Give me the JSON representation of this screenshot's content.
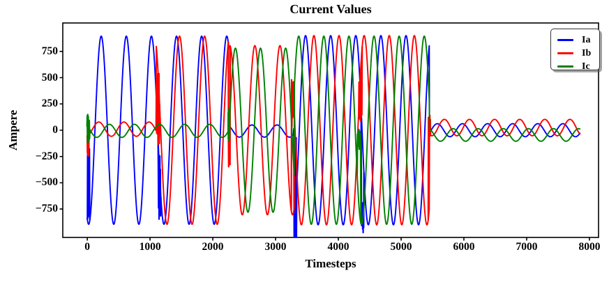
{
  "figure": {
    "title": "Current Values",
    "background_color": "#ffffff"
  },
  "chart_data": {
    "type": "line",
    "title": "Current Values",
    "xlabel": "Timesteps",
    "ylabel": "Ampere",
    "grid": false,
    "xlim": [
      -390,
      8145
    ],
    "ylim": [
      -1020,
      1020
    ],
    "x_ticks": [
      0,
      1000,
      2000,
      3000,
      4000,
      5000,
      6000,
      7000,
      8000
    ],
    "x_tick_labels": [
      "0",
      "1000",
      "2000",
      "3000",
      "4000",
      "5000",
      "6000",
      "7000",
      "8000"
    ],
    "y_ticks": [
      -750,
      -500,
      -250,
      0,
      250,
      500,
      750
    ],
    "y_tick_labels": [
      "−750",
      "−500",
      "−250",
      "0",
      "250",
      "500",
      "750"
    ],
    "legend": {
      "position": "upper right",
      "entries": [
        {
          "label": "Ia",
          "color": "#0000ff"
        },
        {
          "label": "Ib",
          "color": "#ff0000"
        },
        {
          "label": "Ic",
          "color": "#008000"
        }
      ]
    },
    "waveform_period_timesteps": 400,
    "t_start": 0,
    "t_end": 7850,
    "sample_step": 4,
    "fault_stage_boundaries": [
      0,
      1100,
      2250,
      3300,
      5450,
      7850
    ],
    "series": [
      {
        "name": "Ia",
        "color": "#0000ff",
        "stages": [
          {
            "t": [
              0,
              2250
            ],
            "amp": 895,
            "phase_deg": -110,
            "offset": 0
          },
          {
            "t": [
              2250,
              3300
            ],
            "amp": 58,
            "phase_deg": -110,
            "offset": -8
          },
          {
            "t": [
              3300,
              5450
            ],
            "amp": 900,
            "phase_deg": -160,
            "offset": 0
          },
          {
            "t": [
              5450,
              7860
            ],
            "amp": 62,
            "phase_deg": 110,
            "offset": 0
          }
        ]
      },
      {
        "name": "Ib",
        "color": "#ff0000",
        "stages": [
          {
            "t": [
              0,
              1100
            ],
            "amp": 68,
            "phase_deg": -75,
            "offset": 10
          },
          {
            "t": [
              1100,
              2250
            ],
            "amp": 895,
            "phase_deg": -153,
            "offset": 0
          },
          {
            "t": [
              2250,
              3300
            ],
            "amp": 805,
            "phase_deg": -153,
            "offset": 0
          },
          {
            "t": [
              3300,
              5450
            ],
            "amp": 900,
            "phase_deg": 80,
            "offset": 0
          },
          {
            "t": [
              5450,
              7860
            ],
            "amp": 78,
            "phase_deg": 10,
            "offset": 25
          }
        ]
      },
      {
        "name": "Ic",
        "color": "#008000",
        "stages": [
          {
            "t": [
              0,
              2250
            ],
            "amp": 62,
            "phase_deg": 133,
            "offset": -6
          },
          {
            "t": [
              2250,
              3300
            ],
            "amp": 780,
            "phase_deg": 126,
            "offset": 0
          },
          {
            "t": [
              3300,
              5450
            ],
            "amp": 895,
            "phase_deg": -62,
            "offset": 0
          },
          {
            "t": [
              5450,
              7860
            ],
            "amp": 60,
            "phase_deg": -115,
            "offset": -45
          }
        ]
      }
    ],
    "transients": [
      {
        "series": "Ic",
        "t": 18,
        "span": 45,
        "y_range": [
          -90,
          115
        ]
      },
      {
        "series": "Ib",
        "t": 12,
        "span": 30,
        "y_range": [
          -225,
          -40
        ]
      },
      {
        "series": "Ia",
        "t": 22,
        "span": 40,
        "y_range": [
          -820,
          -250
        ]
      },
      {
        "series": "Ib",
        "t": 1125,
        "span": 55,
        "y_range": [
          -60,
          458
        ]
      },
      {
        "series": "Ia",
        "t": 1150,
        "span": 45,
        "y_range": [
          -810,
          -280
        ]
      },
      {
        "series": "Ib",
        "t": 2262,
        "span": 30,
        "y_range": [
          -310,
          -90
        ]
      },
      {
        "series": "Ic",
        "t": 2256,
        "span": 25,
        "y_range": [
          -60,
          180
        ]
      },
      {
        "series": "Ib",
        "t": 3278,
        "span": 55,
        "y_range": [
          75,
          452
        ]
      },
      {
        "series": "Ia",
        "t": 3312,
        "span": 50,
        "y_range": [
          -885,
          -80
        ]
      },
      {
        "series": "Ib",
        "t": 4352,
        "span": 55,
        "y_range": [
          95,
          480
        ]
      },
      {
        "series": "Ic",
        "t": 4330,
        "span": 60,
        "y_range": [
          -165,
          -15
        ]
      },
      {
        "series": "Ia",
        "t": 4385,
        "span": 45,
        "y_range": [
          -935,
          -690
        ]
      },
      {
        "series": "Ib",
        "t": 5452,
        "span": 40,
        "y_range": [
          -45,
          125
        ]
      }
    ]
  }
}
